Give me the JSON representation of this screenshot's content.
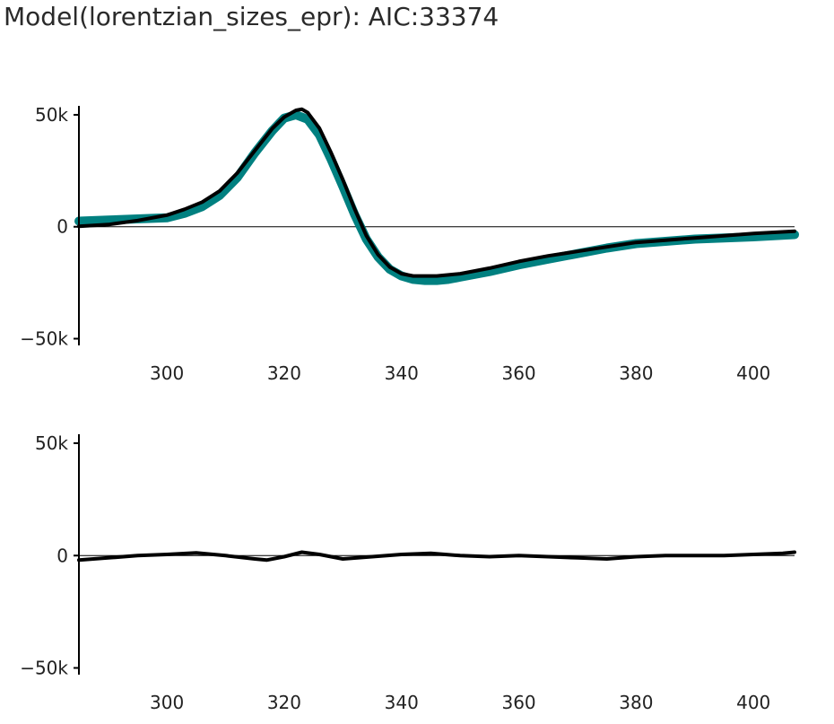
{
  "title": "Model(lorentzian_sizes_epr): AIC:33374",
  "colors": {
    "data": "#008080",
    "model": "#000000",
    "axis": "#000000",
    "text": "#222222"
  },
  "chart_data": [
    {
      "type": "line",
      "title": "",
      "xlabel": "",
      "ylabel": "",
      "xlim": [
        285,
        407
      ],
      "ylim": [
        -53000,
        54000
      ],
      "xticks": [
        300,
        320,
        340,
        360,
        380,
        400
      ],
      "yticks": [
        50000,
        0,
        -50000
      ],
      "ytick_labels": [
        "50k",
        "0",
        "−50k"
      ],
      "zero_line": true,
      "series": [
        {
          "role": "data",
          "color": "#008080",
          "x": [
            285,
            290,
            295,
            300,
            303,
            306,
            309,
            312,
            315,
            318,
            320,
            322,
            324,
            326,
            328,
            330,
            332,
            334,
            336,
            338,
            340,
            342,
            344,
            346,
            348,
            350,
            355,
            360,
            365,
            370,
            375,
            380,
            385,
            390,
            395,
            400,
            407
          ],
          "y": [
            2500,
            3000,
            3500,
            4000,
            6000,
            9000,
            14000,
            22000,
            33000,
            43000,
            48500,
            50000,
            48000,
            41000,
            30000,
            18000,
            5500,
            -5500,
            -13500,
            -19000,
            -22000,
            -23500,
            -24000,
            -24000,
            -23500,
            -22500,
            -20000,
            -17000,
            -14500,
            -12000,
            -9500,
            -7500,
            -6500,
            -5500,
            -5000,
            -4500,
            -3500
          ]
        },
        {
          "role": "model",
          "color": "#000000",
          "x": [
            285,
            290,
            295,
            300,
            303,
            306,
            309,
            312,
            315,
            318,
            320,
            322,
            323,
            324,
            326,
            328,
            330,
            332,
            334,
            336,
            338,
            340,
            342,
            344,
            346,
            348,
            350,
            355,
            360,
            365,
            370,
            375,
            380,
            385,
            390,
            395,
            400,
            407
          ],
          "y": [
            200,
            1000,
            2800,
            5200,
            7800,
            11000,
            16000,
            24000,
            34000,
            44000,
            49000,
            52000,
            52500,
            51000,
            44000,
            33000,
            21000,
            8000,
            -4000,
            -12500,
            -18000,
            -21000,
            -22000,
            -22000,
            -22000,
            -21500,
            -21000,
            -18500,
            -15500,
            -13000,
            -11000,
            -9000,
            -7000,
            -6000,
            -5000,
            -4000,
            -3000,
            -2000
          ]
        }
      ]
    },
    {
      "type": "line",
      "title": "",
      "xlabel": "",
      "ylabel": "",
      "xlim": [
        285,
        407
      ],
      "ylim": [
        -53000,
        54000
      ],
      "xticks": [
        300,
        320,
        340,
        360,
        380,
        400
      ],
      "yticks": [
        50000,
        0,
        -50000
      ],
      "ytick_labels": [
        "50k",
        "0",
        "−50k"
      ],
      "zero_line": true,
      "series": [
        {
          "role": "residual",
          "color": "#000000",
          "x": [
            285,
            290,
            295,
            300,
            305,
            310,
            315,
            317,
            320,
            323,
            326,
            330,
            335,
            340,
            345,
            350,
            355,
            360,
            365,
            370,
            375,
            380,
            385,
            390,
            395,
            400,
            405,
            407
          ],
          "y": [
            -2000,
            -1000,
            0,
            500,
            1200,
            0,
            -1500,
            -2000,
            -500,
            1500,
            500,
            -1500,
            -500,
            500,
            1000,
            0,
            -500,
            0,
            -500,
            -1000,
            -1500,
            -500,
            0,
            0,
            0,
            500,
            1000,
            1500
          ]
        }
      ]
    }
  ]
}
